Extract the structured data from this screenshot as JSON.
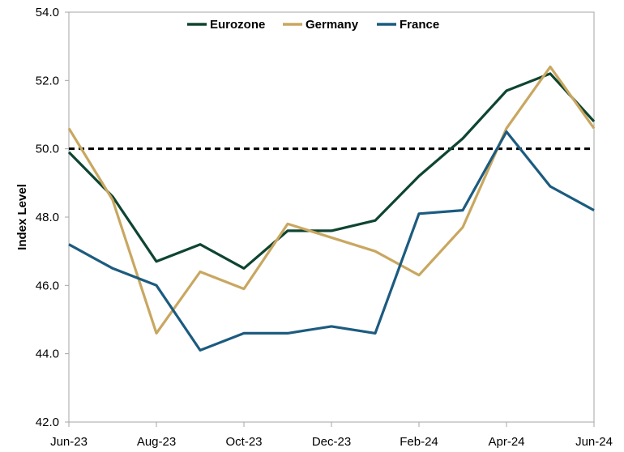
{
  "chart_data": {
    "type": "line",
    "ylabel": "Index Level",
    "ylim": [
      42,
      54
    ],
    "yticks": [
      "42.0",
      "44.0",
      "46.0",
      "48.0",
      "50.0",
      "52.0",
      "54.0"
    ],
    "x": [
      "Jun-23",
      "Jul-23",
      "Aug-23",
      "Sep-23",
      "Oct-23",
      "Nov-23",
      "Dec-23",
      "Jan-24",
      "Feb-24",
      "Mar-24",
      "Apr-24",
      "May-24",
      "Jun-24"
    ],
    "xtick_labels": [
      "Jun-23",
      "Aug-23",
      "Oct-23",
      "Dec-23",
      "Feb-24",
      "Apr-24",
      "Jun-24"
    ],
    "reference_line": {
      "value": 50,
      "style": "dashed",
      "color": "#000000"
    },
    "legend_position": "top-center",
    "grid": false,
    "series": [
      {
        "name": "Eurozone",
        "color": "#0e4530",
        "values": [
          49.9,
          48.6,
          46.7,
          47.2,
          46.5,
          47.6,
          47.6,
          47.9,
          49.2,
          50.3,
          51.7,
          52.2,
          50.8
        ]
      },
      {
        "name": "Germany",
        "color": "#c9a760",
        "values": [
          50.6,
          48.5,
          44.6,
          46.4,
          45.9,
          47.8,
          47.4,
          47.0,
          46.3,
          47.7,
          50.6,
          52.4,
          50.6
        ]
      },
      {
        "name": "France",
        "color": "#1c5b80",
        "values": [
          47.2,
          46.5,
          46.0,
          44.1,
          44.6,
          44.6,
          44.8,
          44.6,
          48.1,
          48.2,
          50.5,
          48.9,
          48.2
        ]
      }
    ]
  }
}
